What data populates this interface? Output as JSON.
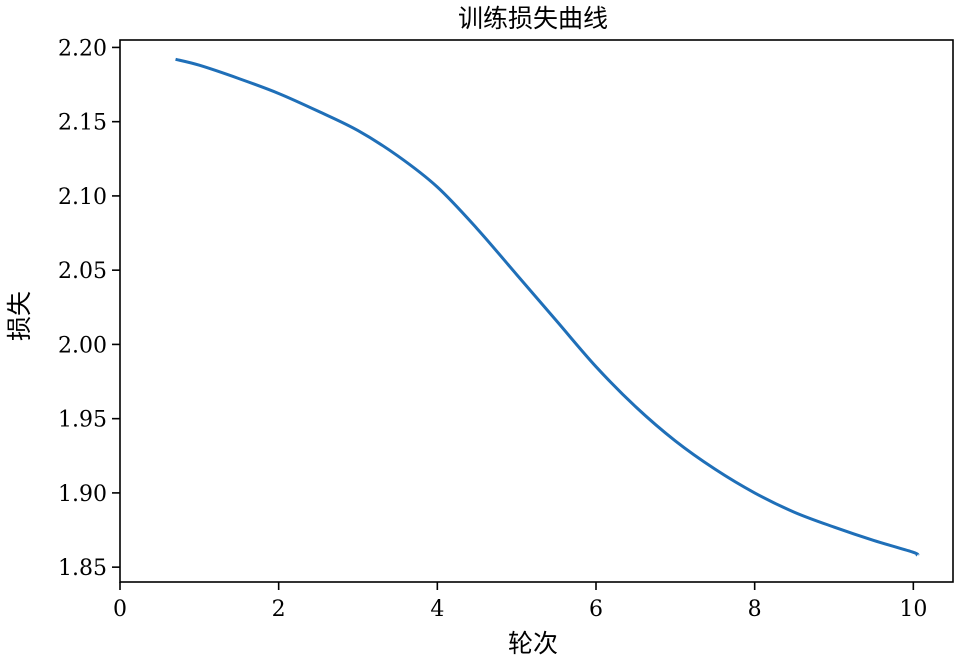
{
  "chart_data": {
    "type": "line",
    "title": "训练损失曲线",
    "xlabel": "轮次",
    "ylabel": "损失",
    "xlim": [
      0,
      10.5
    ],
    "ylim": [
      1.84,
      2.205
    ],
    "xticks": [
      0,
      2,
      4,
      6,
      8,
      10
    ],
    "xtick_labels": [
      "0",
      "2",
      "4",
      "6",
      "8",
      "10"
    ],
    "yticks": [
      1.85,
      1.9,
      1.95,
      2.0,
      2.05,
      2.1,
      2.15,
      2.2
    ],
    "ytick_labels": [
      "1.85",
      "1.90",
      "1.95",
      "2.00",
      "2.05",
      "2.10",
      "2.15",
      "2.20"
    ],
    "grid": false,
    "series": [
      {
        "color": "#1f6fb8",
        "x": [
          0.7,
          1.0,
          1.5,
          2.0,
          2.5,
          3.0,
          3.5,
          4.0,
          4.5,
          5.0,
          5.5,
          6.0,
          6.5,
          7.0,
          7.5,
          8.0,
          8.5,
          9.0,
          9.5,
          10.0,
          10.05
        ],
        "y": [
          2.192,
          2.188,
          2.179,
          2.169,
          2.157,
          2.144,
          2.127,
          2.106,
          2.078,
          2.047,
          2.016,
          1.985,
          1.958,
          1.935,
          1.916,
          1.9,
          1.887,
          1.877,
          1.868,
          1.86,
          1.858
        ]
      }
    ]
  }
}
